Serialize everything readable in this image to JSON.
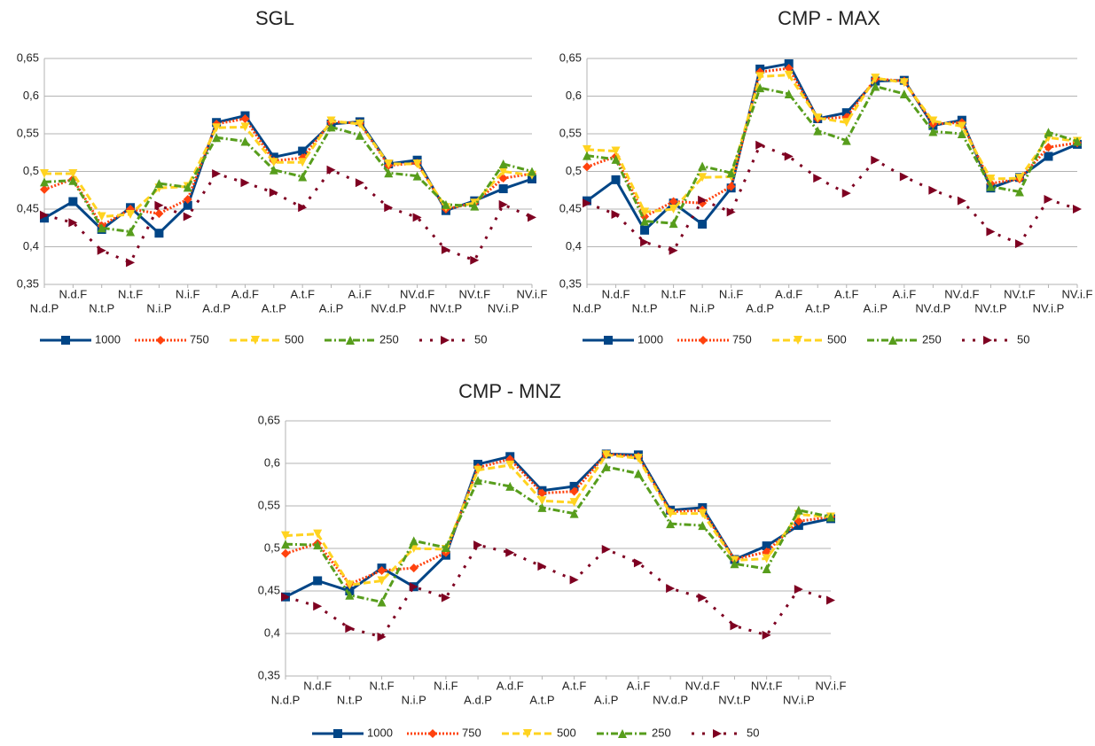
{
  "chart_data": [
    {
      "type": "line",
      "title": "SGL",
      "categories": [
        "N.d.P",
        "N.d.F",
        "N.t.P",
        "N.t.F",
        "N.i.P",
        "N.i.F",
        "A.d.P",
        "A.d.F",
        "A.t.P",
        "A.t.F",
        "A.i.P",
        "A.i.F",
        "NV.d.P",
        "NV.d.F",
        "NV.t.P",
        "NV.t.F",
        "NV.i.P",
        "NV.i.F"
      ],
      "ylim": [
        0.35,
        0.65
      ],
      "yticks": [
        {
          "value": 0.35,
          "label": "0,35"
        },
        {
          "value": 0.4,
          "label": "0,4"
        },
        {
          "value": 0.45,
          "label": "0,45"
        },
        {
          "value": 0.5,
          "label": "0,5"
        },
        {
          "value": 0.55,
          "label": "0,55"
        },
        {
          "value": 0.6,
          "label": "0,6"
        },
        {
          "value": 0.65,
          "label": "0,65"
        }
      ],
      "grid": true,
      "series": [
        {
          "name": "1000",
          "color": "#004586",
          "line_style": "solid",
          "marker": "square",
          "values": [
            0.438,
            0.46,
            0.423,
            0.452,
            0.418,
            0.455,
            0.565,
            0.574,
            0.519,
            0.527,
            0.563,
            0.566,
            0.51,
            0.515,
            0.448,
            0.461,
            0.477,
            0.49
          ]
        },
        {
          "name": "750",
          "color": "#ff420e",
          "line_style": "dotted",
          "marker": "diamond",
          "values": [
            0.476,
            0.49,
            0.428,
            0.45,
            0.444,
            0.463,
            0.563,
            0.57,
            0.514,
            0.518,
            0.566,
            0.564,
            0.508,
            0.511,
            0.45,
            0.458,
            0.491,
            0.497
          ]
        },
        {
          "name": "500",
          "color": "#ffd320",
          "line_style": "dashed",
          "marker": "triangle-down",
          "values": [
            0.497,
            0.497,
            0.44,
            0.443,
            0.478,
            0.48,
            0.558,
            0.559,
            0.512,
            0.512,
            0.567,
            0.563,
            0.51,
            0.51,
            0.452,
            0.458,
            0.5,
            0.495
          ]
        },
        {
          "name": "250",
          "color": "#579d1c",
          "line_style": "dash-dot",
          "marker": "triangle-up",
          "values": [
            0.486,
            0.488,
            0.425,
            0.42,
            0.484,
            0.479,
            0.545,
            0.54,
            0.502,
            0.493,
            0.559,
            0.548,
            0.498,
            0.494,
            0.456,
            0.454,
            0.51,
            0.5
          ]
        },
        {
          "name": "50",
          "color": "#7e0021",
          "line_style": "sparse-dotted",
          "marker": "triangle-right",
          "values": [
            0.442,
            0.432,
            0.395,
            0.379,
            0.455,
            0.44,
            0.497,
            0.485,
            0.472,
            0.452,
            0.502,
            0.485,
            0.452,
            0.439,
            0.396,
            0.382,
            0.456,
            0.439
          ]
        }
      ]
    },
    {
      "type": "line",
      "title": "CMP - MAX",
      "categories": [
        "N.d.P",
        "N.d.F",
        "N.t.P",
        "N.t.F",
        "N.i.P",
        "N.i.F",
        "A.d.P",
        "A.d.F",
        "A.t.P",
        "A.t.F",
        "A.i.P",
        "A.i.F",
        "NV.d.P",
        "NV.d.F",
        "NV.t.P",
        "NV.t.F",
        "NV.i.P",
        "NV.i.F"
      ],
      "ylim": [
        0.35,
        0.65
      ],
      "yticks": [
        {
          "value": 0.35,
          "label": "0,35"
        },
        {
          "value": 0.4,
          "label": "0,4"
        },
        {
          "value": 0.45,
          "label": "0,45"
        },
        {
          "value": 0.5,
          "label": "0,5"
        },
        {
          "value": 0.55,
          "label": "0,55"
        },
        {
          "value": 0.6,
          "label": "0,6"
        },
        {
          "value": 0.65,
          "label": "0,65"
        }
      ],
      "grid": true,
      "series": [
        {
          "name": "1000",
          "color": "#004586",
          "line_style": "solid",
          "marker": "square",
          "values": [
            0.461,
            0.489,
            0.422,
            0.458,
            0.43,
            0.478,
            0.636,
            0.643,
            0.57,
            0.578,
            0.62,
            0.621,
            0.561,
            0.568,
            0.478,
            0.492,
            0.52,
            0.536
          ]
        },
        {
          "name": "750",
          "color": "#ff420e",
          "line_style": "dotted",
          "marker": "diamond",
          "values": [
            0.506,
            0.52,
            0.44,
            0.46,
            0.458,
            0.48,
            0.632,
            0.637,
            0.57,
            0.572,
            0.623,
            0.62,
            0.563,
            0.565,
            0.484,
            0.49,
            0.532,
            0.538
          ]
        },
        {
          "name": "500",
          "color": "#ffd320",
          "line_style": "dashed",
          "marker": "triangle-down",
          "values": [
            0.529,
            0.527,
            0.446,
            0.45,
            0.492,
            0.493,
            0.626,
            0.628,
            0.571,
            0.565,
            0.624,
            0.618,
            0.567,
            0.56,
            0.49,
            0.491,
            0.545,
            0.54
          ]
        },
        {
          "name": "250",
          "color": "#579d1c",
          "line_style": "dash-dot",
          "marker": "triangle-up",
          "values": [
            0.521,
            0.516,
            0.434,
            0.431,
            0.507,
            0.498,
            0.611,
            0.603,
            0.554,
            0.541,
            0.613,
            0.603,
            0.553,
            0.55,
            0.48,
            0.473,
            0.552,
            0.54
          ]
        },
        {
          "name": "50",
          "color": "#7e0021",
          "line_style": "sparse-dotted",
          "marker": "triangle-right",
          "values": [
            0.458,
            0.443,
            0.406,
            0.395,
            0.462,
            0.446,
            0.535,
            0.52,
            0.491,
            0.471,
            0.515,
            0.493,
            0.475,
            0.461,
            0.42,
            0.404,
            0.463,
            0.45
          ]
        }
      ]
    },
    {
      "type": "line",
      "title": "CMP - MNZ",
      "categories": [
        "N.d.P",
        "N.d.F",
        "N.t.P",
        "N.t.F",
        "N.i.P",
        "N.i.F",
        "A.d.P",
        "A.d.F",
        "A.t.P",
        "A.t.F",
        "A.i.P",
        "A.i.F",
        "NV.d.P",
        "NV.d.F",
        "NV.t.P",
        "NV.t.F",
        "NV.i.P",
        "NV.i.F"
      ],
      "ylim": [
        0.35,
        0.65
      ],
      "yticks": [
        {
          "value": 0.35,
          "label": "0,35"
        },
        {
          "value": 0.4,
          "label": "0,4"
        },
        {
          "value": 0.45,
          "label": "0,45"
        },
        {
          "value": 0.5,
          "label": "0,5"
        },
        {
          "value": 0.55,
          "label": "0,55"
        },
        {
          "value": 0.6,
          "label": "0,6"
        },
        {
          "value": 0.65,
          "label": "0,65"
        }
      ],
      "grid": true,
      "series": [
        {
          "name": "1000",
          "color": "#004586",
          "line_style": "solid",
          "marker": "square",
          "values": [
            0.443,
            0.462,
            0.45,
            0.477,
            0.455,
            0.492,
            0.599,
            0.608,
            0.568,
            0.573,
            0.611,
            0.61,
            0.545,
            0.548,
            0.487,
            0.503,
            0.527,
            0.535
          ]
        },
        {
          "name": "750",
          "color": "#ff420e",
          "line_style": "dotted",
          "marker": "diamond",
          "values": [
            0.494,
            0.506,
            0.458,
            0.474,
            0.477,
            0.495,
            0.595,
            0.605,
            0.565,
            0.567,
            0.611,
            0.608,
            0.543,
            0.545,
            0.487,
            0.496,
            0.532,
            0.537
          ]
        },
        {
          "name": "500",
          "color": "#ffd320",
          "line_style": "dashed",
          "marker": "triangle-down",
          "values": [
            0.515,
            0.517,
            0.457,
            0.462,
            0.5,
            0.499,
            0.592,
            0.598,
            0.556,
            0.554,
            0.61,
            0.606,
            0.541,
            0.541,
            0.486,
            0.488,
            0.54,
            0.537
          ]
        },
        {
          "name": "250",
          "color": "#579d1c",
          "line_style": "dash-dot",
          "marker": "triangle-up",
          "values": [
            0.505,
            0.504,
            0.445,
            0.437,
            0.509,
            0.501,
            0.58,
            0.573,
            0.548,
            0.541,
            0.596,
            0.588,
            0.529,
            0.527,
            0.482,
            0.476,
            0.545,
            0.537
          ]
        },
        {
          "name": "50",
          "color": "#7e0021",
          "line_style": "sparse-dotted",
          "marker": "triangle-right",
          "values": [
            0.443,
            0.432,
            0.406,
            0.396,
            0.455,
            0.442,
            0.504,
            0.495,
            0.479,
            0.463,
            0.499,
            0.483,
            0.453,
            0.442,
            0.409,
            0.398,
            0.452,
            0.439
          ]
        }
      ]
    }
  ]
}
